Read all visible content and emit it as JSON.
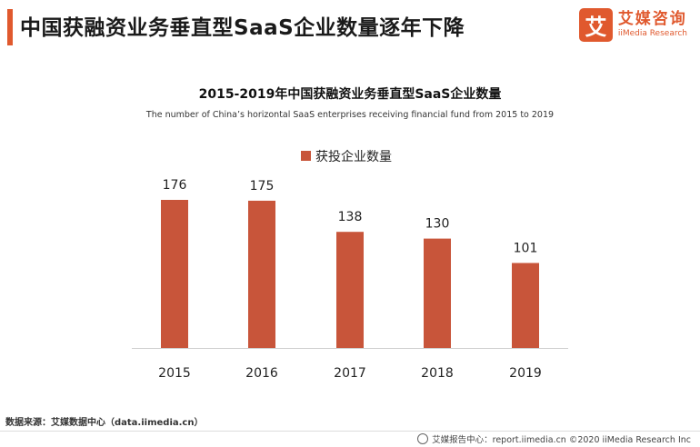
{
  "header": {
    "title": "中国获融资业务垂直型SaaS企业数量逐年下降"
  },
  "brand": {
    "icon": "艾",
    "name_cn": "艾媒咨询",
    "name_en": "iiMedia Research"
  },
  "colors": {
    "accent": "#e0592e",
    "bar": "#c8553a"
  },
  "chart_data": {
    "type": "bar",
    "title": "2015-2019年中国获融资业务垂直型SaaS企业数量",
    "subtitle": "The number of China’s horizontal SaaS enterprises receiving financial fund from 2015 to 2019",
    "categories": [
      "2015",
      "2016",
      "2017",
      "2018",
      "2019"
    ],
    "series": [
      {
        "name": "获投企业数量",
        "values": [
          176,
          175,
          138,
          130,
          101
        ]
      }
    ],
    "ylim": [
      0,
      176
    ],
    "legend": "top-center",
    "grid": false
  },
  "source": "数据来源：艾媒数据中心（data.iimedia.cn）",
  "footer": "艾媒报告中心：report.iimedia.cn  ©2020  iiMedia Research  Inc"
}
